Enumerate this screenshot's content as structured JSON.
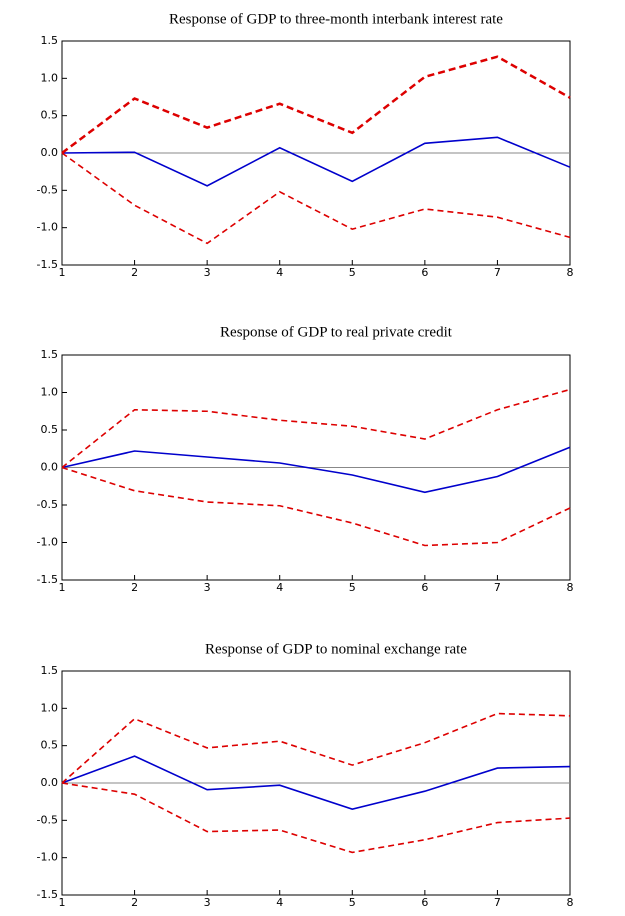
{
  "chart_data": [
    {
      "type": "line",
      "title": "Response of GDP to three-month interbank interest rate",
      "x": [
        1,
        2,
        3,
        4,
        5,
        6,
        7,
        8
      ],
      "xlim": [
        1,
        8
      ],
      "xticks": [
        1,
        2,
        3,
        4,
        5,
        6,
        7,
        8
      ],
      "ylim": [
        -1.5,
        1.5
      ],
      "yticks": [
        -1.5,
        {
          "value": -1,
          "label": "-1.0"
        },
        -0.5,
        {
          "value": 0,
          "label": "0.0"
        },
        0.5,
        {
          "value": 1,
          "label": "1.0"
        },
        1.5
      ],
      "grid": false,
      "zero_line": true,
      "series": [
        {
          "color": "#0000cc",
          "dashed": false,
          "values": [
            0,
            0.01,
            -0.44,
            0.07,
            -0.38,
            0.13,
            0.21,
            -0.19
          ]
        },
        {
          "color": "#dd0000",
          "dashed": true,
          "bold": true,
          "values": [
            0,
            0.73,
            0.34,
            0.66,
            0.27,
            1.02,
            1.29,
            0.74
          ]
        },
        {
          "color": "#dd0000",
          "dashed": true,
          "values": [
            0,
            -0.7,
            -1.21,
            -0.52,
            -1.02,
            -0.75,
            -0.86,
            -1.13
          ]
        }
      ]
    },
    {
      "type": "line",
      "title": "Response of GDP to real private credit",
      "x": [
        1,
        2,
        3,
        4,
        5,
        6,
        7,
        8
      ],
      "xlim": [
        1,
        8
      ],
      "xticks": [
        1,
        2,
        3,
        4,
        5,
        6,
        7,
        8
      ],
      "ylim": [
        -1.5,
        1.5
      ],
      "yticks": [
        -1.5,
        {
          "value": -1,
          "label": "-1.0"
        },
        -0.5,
        {
          "value": 0,
          "label": "0.0"
        },
        0.5,
        {
          "value": 1,
          "label": "1.0"
        },
        1.5
      ],
      "grid": false,
      "zero_line": true,
      "series": [
        {
          "color": "#0000cc",
          "dashed": false,
          "values": [
            0,
            0.22,
            0.14,
            0.06,
            -0.1,
            -0.33,
            -0.12,
            0.27
          ]
        },
        {
          "color": "#dd0000",
          "dashed": true,
          "values": [
            0,
            0.77,
            0.75,
            0.63,
            0.55,
            0.38,
            0.77,
            1.04
          ]
        },
        {
          "color": "#dd0000",
          "dashed": true,
          "values": [
            0,
            -0.31,
            -0.46,
            -0.51,
            -0.74,
            -1.04,
            -1.0,
            -0.54
          ]
        }
      ]
    },
    {
      "type": "line",
      "title": "Response of GDP to nominal exchange rate",
      "x": [
        1,
        2,
        3,
        4,
        5,
        6,
        7,
        8
      ],
      "xlim": [
        1,
        8
      ],
      "xticks": [
        1,
        2,
        3,
        4,
        5,
        6,
        7,
        8
      ],
      "ylim": [
        -1.5,
        1.5
      ],
      "yticks": [
        -1.5,
        {
          "value": -1,
          "label": "-1.0"
        },
        -0.5,
        {
          "value": 0,
          "label": "0.0"
        },
        0.5,
        {
          "value": 1,
          "label": "1.0"
        },
        1.5
      ],
      "grid": false,
      "zero_line": true,
      "series": [
        {
          "color": "#0000cc",
          "dashed": false,
          "values": [
            0,
            0.36,
            -0.09,
            -0.03,
            -0.35,
            -0.11,
            0.2,
            0.22
          ]
        },
        {
          "color": "#dd0000",
          "dashed": true,
          "values": [
            0,
            0.86,
            0.47,
            0.56,
            0.24,
            0.54,
            0.93,
            0.9
          ]
        },
        {
          "color": "#dd0000",
          "dashed": true,
          "values": [
            0,
            -0.15,
            -0.65,
            -0.63,
            -0.93,
            -0.76,
            -0.53,
            -0.47
          ]
        }
      ]
    }
  ]
}
